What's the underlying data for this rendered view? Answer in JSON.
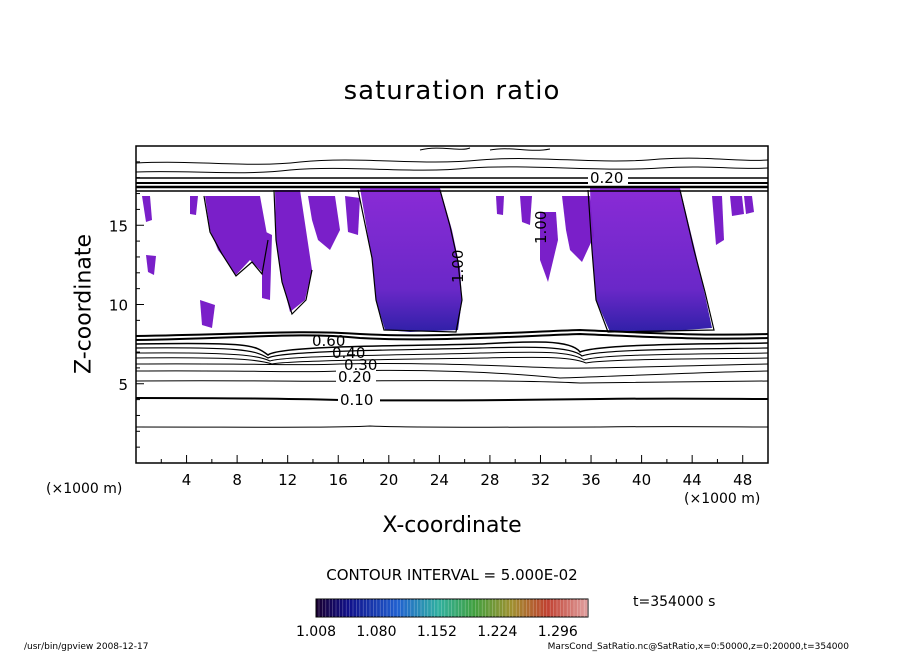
{
  "chart_data": {
    "type": "heatmap",
    "title": "saturation ratio",
    "xlabel": "X-coordinate",
    "ylabel": "Z-coordinate",
    "x_unit": "(×1000 m)",
    "y_unit": "(×1000 m)",
    "xlim": [
      0,
      50
    ],
    "ylim": [
      0,
      20
    ],
    "x_ticks": [
      "4",
      "8",
      "12",
      "16",
      "20",
      "24",
      "28",
      "32",
      "36",
      "40",
      "44",
      "48"
    ],
    "y_ticks": [
      "5",
      "10",
      "15"
    ],
    "contour_interval_label": "CONTOUR INTERVAL = 5.000E-02",
    "contour_labels": [
      "0.10",
      "0.20",
      "0.30",
      "0.40",
      "0.60",
      "0.20",
      "1.00",
      "1.00"
    ],
    "colorbar": {
      "ticks": [
        "1.008",
        "1.080",
        "1.152",
        "1.224",
        "1.296"
      ],
      "min": 1.008,
      "max": 1.332
    },
    "time_label": "t=354000  s",
    "filled_regions": [
      {
        "x_start": 19,
        "x_end": 26,
        "z_top": 17,
        "z_bottom": 8.5,
        "note": "supersaturated cloud"
      },
      {
        "x_start": 36,
        "x_end": 45,
        "z_top": 17,
        "z_bottom": 8.5,
        "note": "supersaturated cloud"
      }
    ]
  },
  "footer": {
    "left": "/usr/bin/gpview  2008-12-17",
    "right": "MarsCond_SatRatio.nc@SatRatio,x=0:50000,z=0:20000,t=354000"
  },
  "colors": {
    "fill_main": "#7a1fc9",
    "fill_deep": "#3a1aa8",
    "line": "#000000"
  }
}
